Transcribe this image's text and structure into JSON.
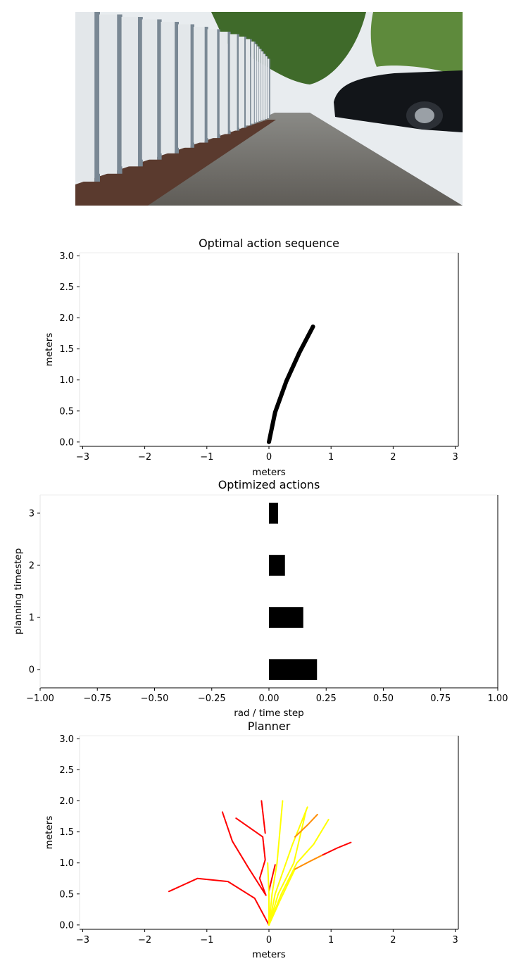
{
  "camera": {
    "colors": {
      "sky": "#e8ecef",
      "tree": "#3f6a2a",
      "fence": "#e3e7ea",
      "fence_shadow": "#7a8894",
      "dirt": "#5a3a2e",
      "sidewalk": "#6d6b66",
      "car": "#121519"
    }
  },
  "chart_data": [
    {
      "type": "line",
      "title": "Optimal action sequence",
      "xlabel": "meters",
      "ylabel": "meters",
      "xlim": [
        -3.05,
        3.05
      ],
      "ylim": [
        -0.07,
        3.05
      ],
      "xticks": [
        -3,
        -2,
        -1,
        0,
        1,
        2,
        3
      ],
      "xtick_labels": [
        "−3",
        "−2",
        "−1",
        "0",
        "1",
        "2",
        "3"
      ],
      "yticks": [
        0.0,
        0.5,
        1.0,
        1.5,
        2.0,
        2.5,
        3.0
      ],
      "ytick_labels": [
        "0.0",
        "0.5",
        "1.0",
        "1.5",
        "2.0",
        "2.5",
        "3.0"
      ],
      "grid": false,
      "series": [
        {
          "color": "#000000",
          "points": [
            [
              0,
              0
            ],
            [
              0.1,
              0.48
            ],
            [
              0.28,
              0.98
            ],
            [
              0.49,
              1.44
            ],
            [
              0.71,
              1.86
            ]
          ]
        }
      ]
    },
    {
      "type": "bar",
      "orientation": "horizontal",
      "title": "Optimized actions",
      "xlabel": "rad / time step",
      "ylabel": "planning timestep",
      "xlim": [
        -1.0,
        1.0
      ],
      "ylim": [
        -0.35,
        3.35
      ],
      "xticks": [
        -1.0,
        -0.75,
        -0.5,
        -0.25,
        0.0,
        0.25,
        0.5,
        0.75,
        1.0
      ],
      "xtick_labels": [
        "−1.00",
        "−0.75",
        "−0.50",
        "−0.25",
        "0.00",
        "0.25",
        "0.50",
        "0.75",
        "1.00"
      ],
      "yticks": [
        0,
        1,
        2,
        3
      ],
      "ytick_labels": [
        "0",
        "1",
        "2",
        "3"
      ],
      "grid": false,
      "categories": [
        0,
        1,
        2,
        3
      ],
      "values": [
        0.21,
        0.15,
        0.07,
        0.04
      ],
      "color": "#000000"
    },
    {
      "type": "line",
      "title": "Planner",
      "xlabel": "meters",
      "ylabel": "meters",
      "xlim": [
        -3.05,
        3.05
      ],
      "ylim": [
        -0.07,
        3.05
      ],
      "xticks": [
        -3,
        -2,
        -1,
        0,
        1,
        2,
        3
      ],
      "xtick_labels": [
        "−3",
        "−2",
        "−1",
        "0",
        "1",
        "2",
        "3"
      ],
      "yticks": [
        0.0,
        0.5,
        1.0,
        1.5,
        2.0,
        2.5,
        3.0
      ],
      "ytick_labels": [
        "0.0",
        "0.5",
        "1.0",
        "1.5",
        "2.0",
        "2.5",
        "3.0"
      ],
      "grid": false,
      "series": [
        {
          "color": "#ff0000",
          "points": [
            [
              0,
              0
            ],
            [
              -0.23,
              0.43
            ],
            [
              -0.66,
              0.7
            ],
            [
              -1.15,
              0.75
            ],
            [
              -1.61,
              0.54
            ]
          ]
        },
        {
          "color": "#ff0000",
          "points": [
            [
              -0.05,
              0.48
            ],
            [
              -0.33,
              0.92
            ],
            [
              -0.59,
              1.35
            ],
            [
              -0.75,
              1.82
            ]
          ]
        },
        {
          "color": "#ff0000",
          "points": [
            [
              -0.05,
              0.48
            ],
            [
              -0.15,
              0.75
            ],
            [
              -0.06,
              1.05
            ],
            [
              -0.1,
              1.42
            ],
            [
              -0.53,
              1.72
            ]
          ]
        },
        {
          "color": "#ff0000",
          "points": [
            [
              -0.06,
              1.48
            ],
            [
              -0.12,
              2.0
            ]
          ]
        },
        {
          "color": "#ff0000",
          "points": [
            [
              0,
              0.55
            ],
            [
              0.1,
              0.97
            ]
          ]
        },
        {
          "color": "#ffff00",
          "points": [
            [
              0,
              0
            ],
            [
              0.05,
              0.5
            ],
            [
              0.13,
              1.0
            ],
            [
              0.22,
              2.0
            ]
          ]
        },
        {
          "color": "#ffff00",
          "points": [
            [
              0,
              0
            ],
            [
              0.1,
              0.5
            ],
            [
              0.38,
              1.3
            ],
            [
              0.62,
              1.9
            ]
          ]
        },
        {
          "color": "#ffff00",
          "points": [
            [
              0,
              0
            ],
            [
              0.15,
              0.5
            ],
            [
              0.4,
              1.0
            ],
            [
              0.6,
              1.85
            ]
          ]
        },
        {
          "color": "#ffff00",
          "points": [
            [
              0,
              0
            ],
            [
              0.2,
              0.5
            ],
            [
              0.45,
              1.0
            ],
            [
              0.72,
              1.3
            ],
            [
              0.96,
              1.7
            ]
          ]
        },
        {
          "color": "#ffff00",
          "points": [
            [
              0,
              0
            ],
            [
              0.18,
              0.4
            ],
            [
              0.42,
              0.9
            ]
          ]
        },
        {
          "color": "#ffff00",
          "points": [
            [
              0,
              0
            ],
            [
              0.0,
              0.5
            ],
            [
              -0.02,
              1.0
            ]
          ]
        },
        {
          "color": "#ff8c00",
          "points": [
            [
              0.42,
              1.42
            ],
            [
              0.63,
              1.62
            ],
            [
              0.78,
              1.78
            ]
          ]
        },
        {
          "color": "#ff8c00",
          "points": [
            [
              0.42,
              0.9
            ],
            [
              0.65,
              1.02
            ],
            [
              0.87,
              1.13
            ]
          ]
        },
        {
          "color": "#ff0000",
          "points": [
            [
              0.87,
              1.13
            ],
            [
              1.1,
              1.24
            ],
            [
              1.32,
              1.33
            ]
          ]
        }
      ]
    }
  ]
}
